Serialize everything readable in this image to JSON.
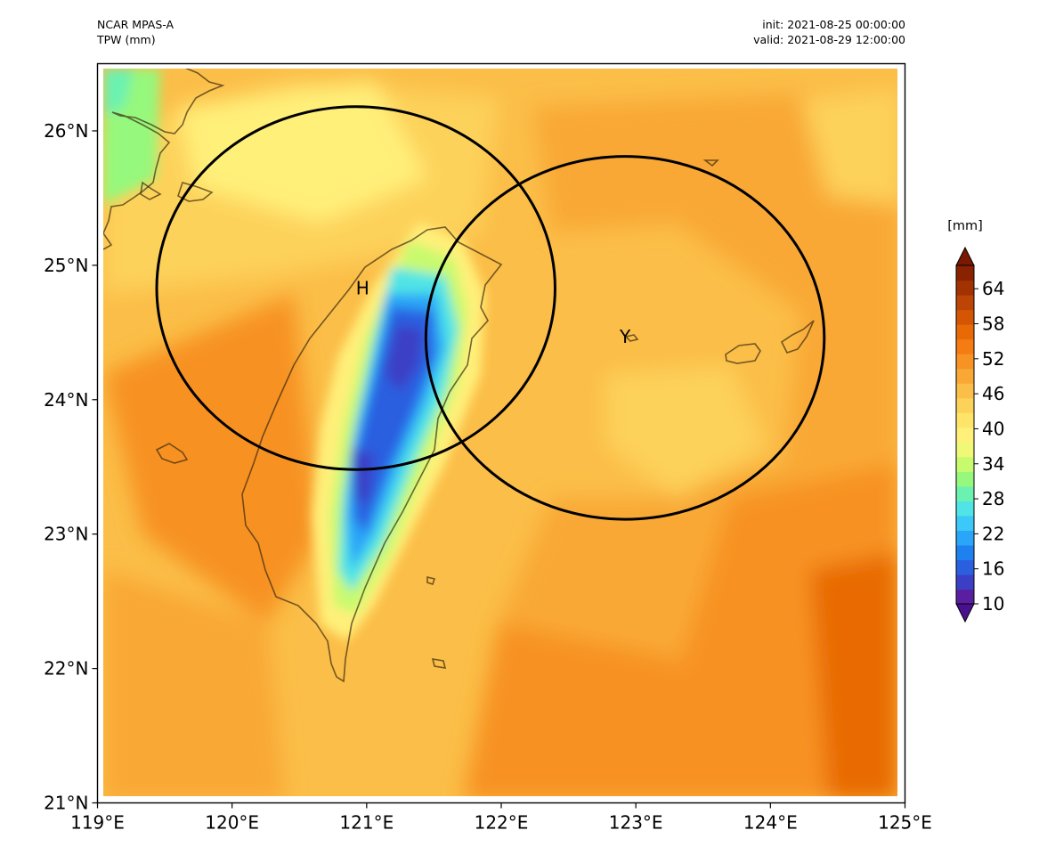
{
  "header": {
    "model": "NCAR MPAS-A",
    "field": "TPW (mm)",
    "init": "init: 2021-08-25 00:00:00",
    "valid": "valid: 2021-08-29 12:00:00"
  },
  "map": {
    "extent": {
      "lon": [
        119,
        125
      ],
      "lat": [
        21,
        26.5
      ]
    },
    "lon_ticks": [
      "119°E",
      "120°E",
      "121°E",
      "122°E",
      "123°E",
      "124°E",
      "125°E"
    ],
    "lat_ticks": [
      "21°N",
      "22°N",
      "23°N",
      "24°N",
      "25°N",
      "26°N"
    ],
    "markers": [
      {
        "label": "H",
        "lon": 120.97,
        "lat": 24.83
      },
      {
        "label": "Y",
        "lon": 122.92,
        "lat": 24.47
      }
    ],
    "circles": [
      {
        "center_lon": 120.92,
        "center_lat": 24.83,
        "radius_deg_lon": 1.48,
        "radius_deg_lat": 1.35
      },
      {
        "center_lon": 122.92,
        "center_lat": 24.46,
        "radius_deg_lon": 1.48,
        "radius_deg_lat": 1.35
      }
    ]
  },
  "colorbar": {
    "unit": "[mm]",
    "ticks": [
      "10",
      "16",
      "22",
      "28",
      "34",
      "40",
      "46",
      "52",
      "58",
      "64"
    ],
    "min": 10,
    "max": 68,
    "colors": [
      "#5a1fa0",
      "#3b3fc6",
      "#2a5fe0",
      "#1f80f0",
      "#2aa5f8",
      "#3cc8f8",
      "#50e4e6",
      "#6cf2b0",
      "#96f87c",
      "#c8fa6e",
      "#f0f878",
      "#fff07a",
      "#ffe46a",
      "#fdd25a",
      "#fbbe48",
      "#f9a836",
      "#f79224",
      "#f57c12",
      "#e86a06",
      "#d45604",
      "#bc4404",
      "#a23202",
      "#8a2202"
    ],
    "extend_top_color": "#7a1800",
    "extend_bottom_color": "#4a1090"
  },
  "palette": {
    "tpw_52": "#fbbe48",
    "tpw_55": "#f9a836",
    "tpw_58": "#f79224",
    "tpw_61": "#f57c12",
    "tpw_64": "#d45604",
    "tpw_46": "#fdd25a",
    "tpw_43": "#fff07a",
    "tpw_40": "#c8fa6e",
    "tpw_34": "#50e4e6",
    "tpw_28": "#2aa5f8",
    "tpw_22": "#2a5fe0",
    "tpw_16": "#3b3fc6",
    "coast": "#3a2a10"
  }
}
